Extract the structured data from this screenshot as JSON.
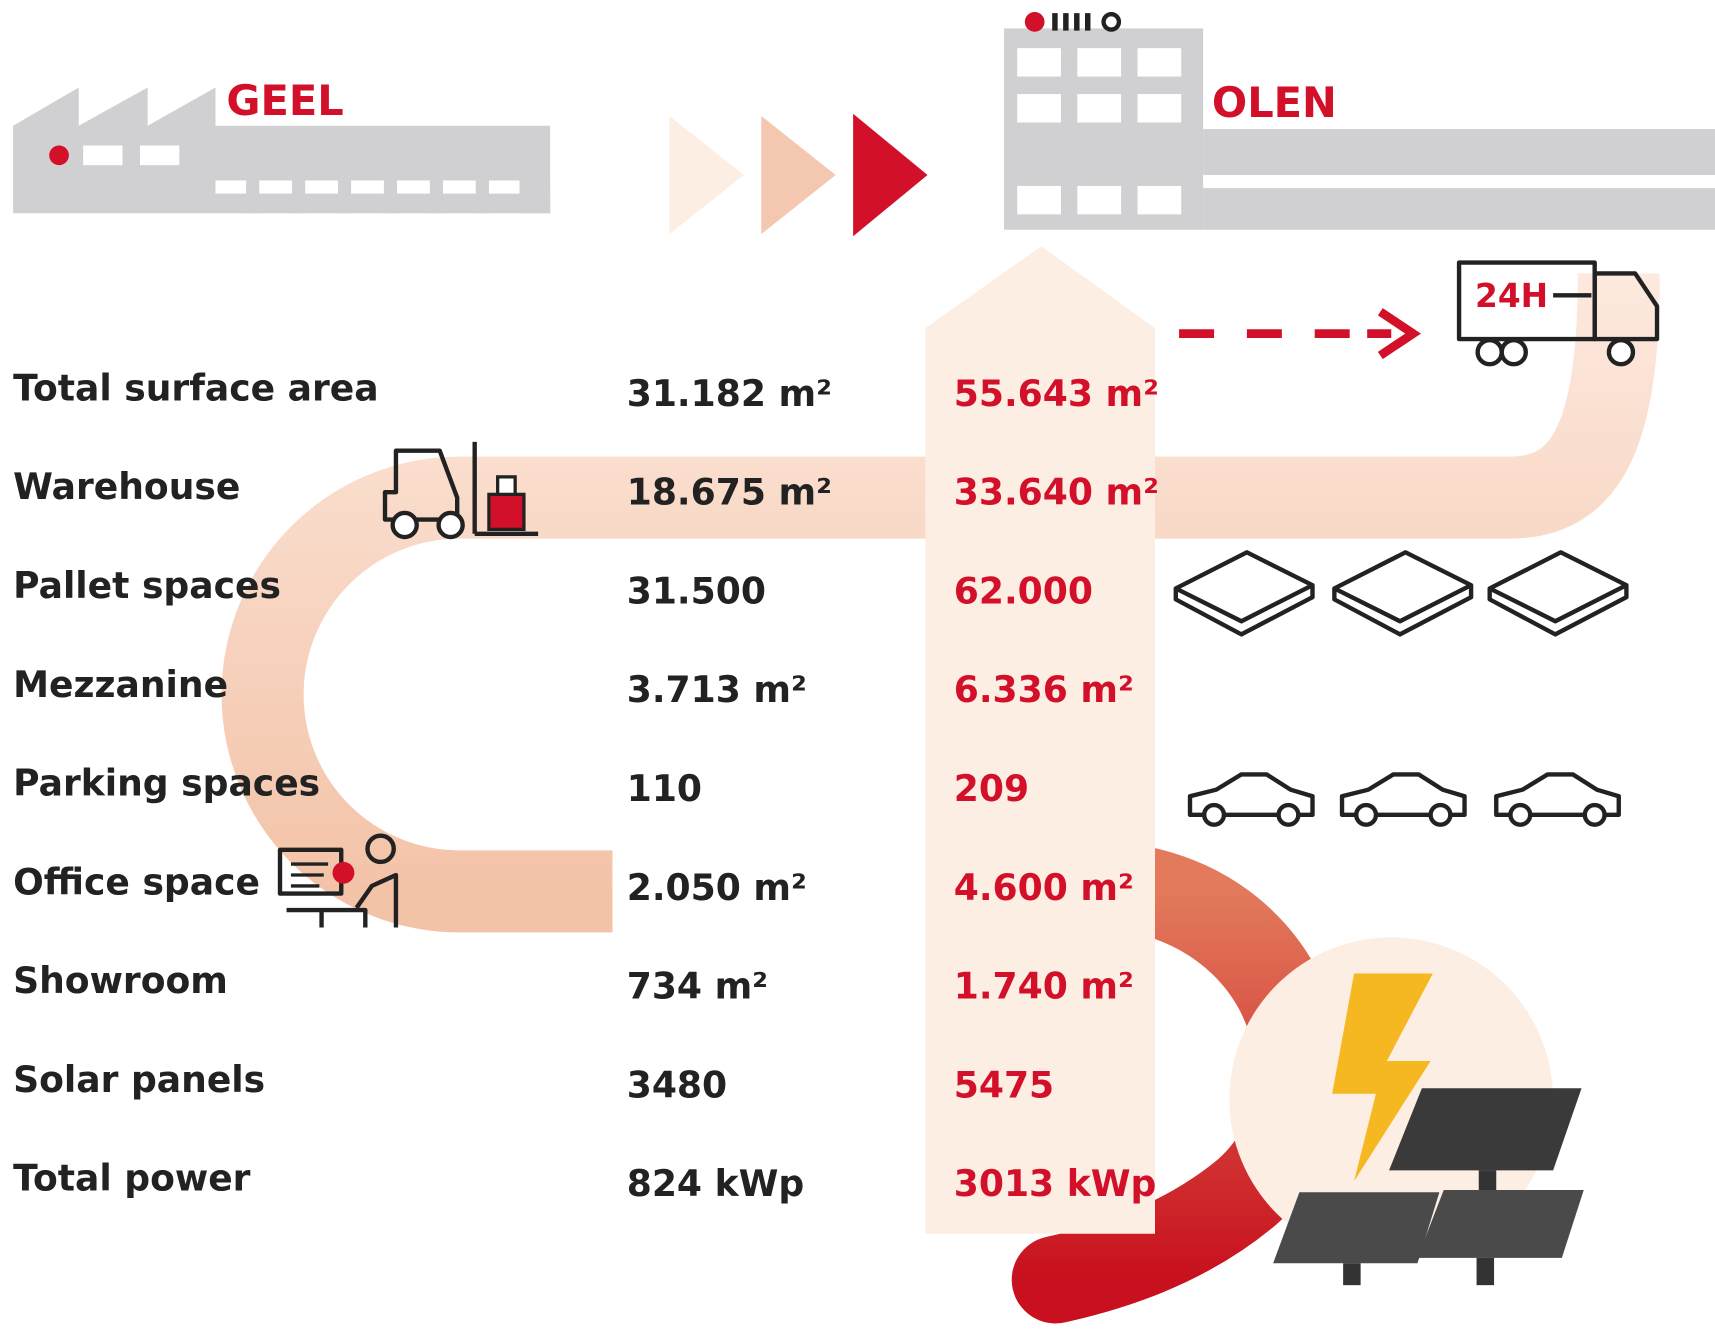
{
  "header": {
    "from": "GEEL",
    "to": "OLEN"
  },
  "truck_label": "24H",
  "rows": [
    {
      "label": "Total surface area",
      "geel": "31.182 m²",
      "olen": "55.643 m²"
    },
    {
      "label": "Warehouse",
      "geel": "18.675 m²",
      "olen": "33.640 m²"
    },
    {
      "label": "Pallet spaces",
      "geel": "31.500",
      "olen": "62.000"
    },
    {
      "label": "Mezzanine",
      "geel": "3.713 m²",
      "olen": "6.336 m²"
    },
    {
      "label": "Parking spaces",
      "geel": "110",
      "olen": "209"
    },
    {
      "label": "Office space",
      "geel": "2.050 m²",
      "olen": "4.600 m²"
    },
    {
      "label": "Showroom",
      "geel": "734 m²",
      "olen": "1.740 m²"
    },
    {
      "label": "Solar panels",
      "geel": "3480",
      "olen": "5475"
    },
    {
      "label": "Total power",
      "geel": "824 kWp",
      "olen": "3013 kWp"
    }
  ]
}
